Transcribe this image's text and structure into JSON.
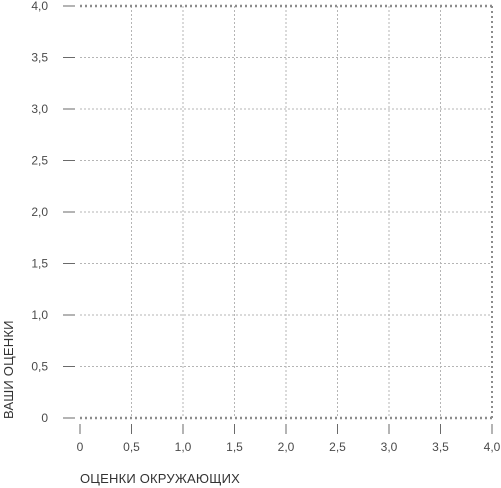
{
  "chart_data": {
    "type": "scatter",
    "title": "",
    "xlabel": "ОЦЕНКИ ОКРУЖАЮЩИХ",
    "ylabel": "ВАШИ ОЦЕНКИ",
    "xlim": [
      0,
      4
    ],
    "ylim": [
      0,
      4
    ],
    "x_ticks": [
      {
        "value": 0,
        "label": "0"
      },
      {
        "value": 0.5,
        "label": "0,5"
      },
      {
        "value": 1,
        "label": "1,0"
      },
      {
        "value": 1.5,
        "label": "1,5"
      },
      {
        "value": 2,
        "label": "2,0"
      },
      {
        "value": 2.5,
        "label": "2,5"
      },
      {
        "value": 3,
        "label": "3,0"
      },
      {
        "value": 3.5,
        "label": "3,5"
      },
      {
        "value": 4,
        "label": "4,0"
      }
    ],
    "y_ticks": [
      {
        "value": 0,
        "label": "0"
      },
      {
        "value": 0.5,
        "label": "0,5"
      },
      {
        "value": 1,
        "label": "1,0"
      },
      {
        "value": 1.5,
        "label": "1,5"
      },
      {
        "value": 2,
        "label": "2,0"
      },
      {
        "value": 2.5,
        "label": "2,5"
      },
      {
        "value": 3,
        "label": "3,0"
      },
      {
        "value": 3.5,
        "label": "3,5"
      },
      {
        "value": 4,
        "label": "4,0"
      }
    ],
    "grid": true,
    "series": []
  },
  "colors": {
    "grid": "#b5b5b5",
    "frame": "#8c8c8c",
    "tick_mark": "#6a6a6a",
    "tick_label": "#4a4a4a",
    "axis_title": "#333333"
  }
}
